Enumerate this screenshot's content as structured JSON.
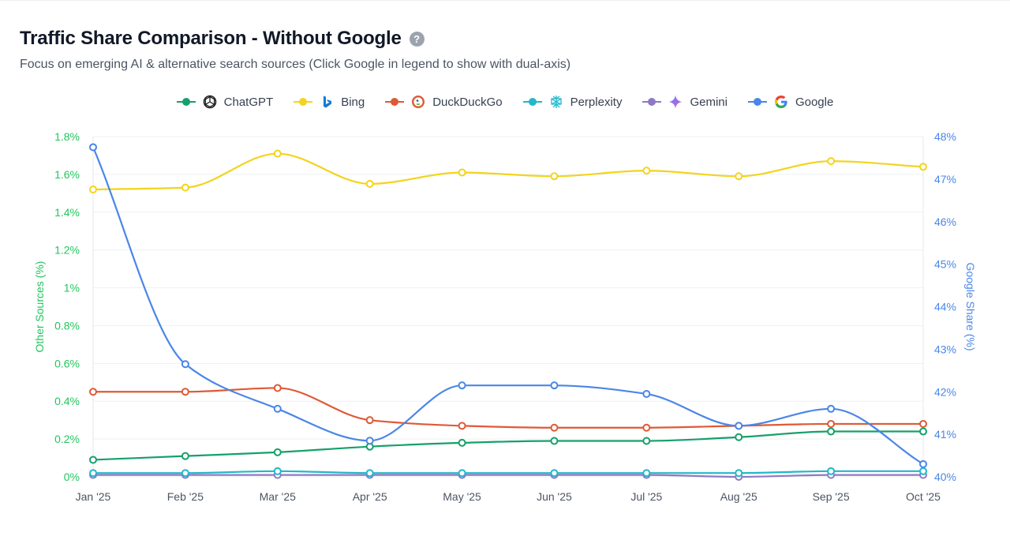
{
  "header": {
    "title": "Traffic Share Comparison - Without Google",
    "help_glyph": "?",
    "subtitle": "Focus on emerging AI & alternative search sources (Click Google in legend to show with dual-axis)"
  },
  "chart_data": {
    "type": "line",
    "x": [
      "Jan '25",
      "Feb '25",
      "Mar '25",
      "Apr '25",
      "May '25",
      "Jun '25",
      "Jul '25",
      "Aug '25",
      "Sep '25",
      "Oct '25"
    ],
    "ylabel": "Other Sources (%)",
    "y2label": "Google Share (%)",
    "ylim": [
      0,
      1.8
    ],
    "y2lim": [
      40,
      48
    ],
    "yticks": [
      "0%",
      "0.2%",
      "0.4%",
      "0.6%",
      "0.8%",
      "1%",
      "1.2%",
      "1.4%",
      "1.6%",
      "1.8%"
    ],
    "y2ticks": [
      "40%",
      "41%",
      "42%",
      "43%",
      "44%",
      "45%",
      "46%",
      "47%",
      "48%"
    ],
    "grid": true,
    "legend_position": "top-center",
    "series": [
      {
        "name": "ChatGPT",
        "color": "#16a06b",
        "axis": "left",
        "icon": "chatgpt-icon",
        "values": [
          0.09,
          0.11,
          0.13,
          0.16,
          0.18,
          0.19,
          0.19,
          0.21,
          0.24,
          0.24
        ]
      },
      {
        "name": "Bing",
        "color": "#f2d41e",
        "axis": "left",
        "icon": "bing-icon",
        "values": [
          1.52,
          1.53,
          1.71,
          1.55,
          1.61,
          1.59,
          1.62,
          1.59,
          1.67,
          1.64
        ]
      },
      {
        "name": "DuckDuckGo",
        "color": "#de5a36",
        "axis": "left",
        "icon": "duckduckgo-icon",
        "values": [
          0.45,
          0.45,
          0.47,
          0.3,
          0.27,
          0.26,
          0.26,
          0.27,
          0.28,
          0.28
        ]
      },
      {
        "name": "Perplexity",
        "color": "#22b8c8",
        "axis": "left",
        "icon": "perplexity-icon",
        "values": [
          0.02,
          0.02,
          0.03,
          0.02,
          0.02,
          0.02,
          0.02,
          0.02,
          0.03,
          0.03
        ]
      },
      {
        "name": "Gemini",
        "color": "#8f79c4",
        "axis": "left",
        "icon": "gemini-icon",
        "values": [
          0.01,
          0.01,
          0.01,
          0.01,
          0.01,
          0.01,
          0.01,
          0.0,
          0.01,
          0.01
        ]
      },
      {
        "name": "Google",
        "color": "#4a86e8",
        "axis": "right",
        "icon": "google-icon",
        "values": [
          47.75,
          42.65,
          41.6,
          40.85,
          42.15,
          42.15,
          41.95,
          41.2,
          41.6,
          40.3
        ]
      }
    ]
  },
  "colors": {
    "left_axis": "#22c55e",
    "right_axis": "#4a86e8",
    "grid": "#eef0f2",
    "axis_text": "#4b5563"
  }
}
